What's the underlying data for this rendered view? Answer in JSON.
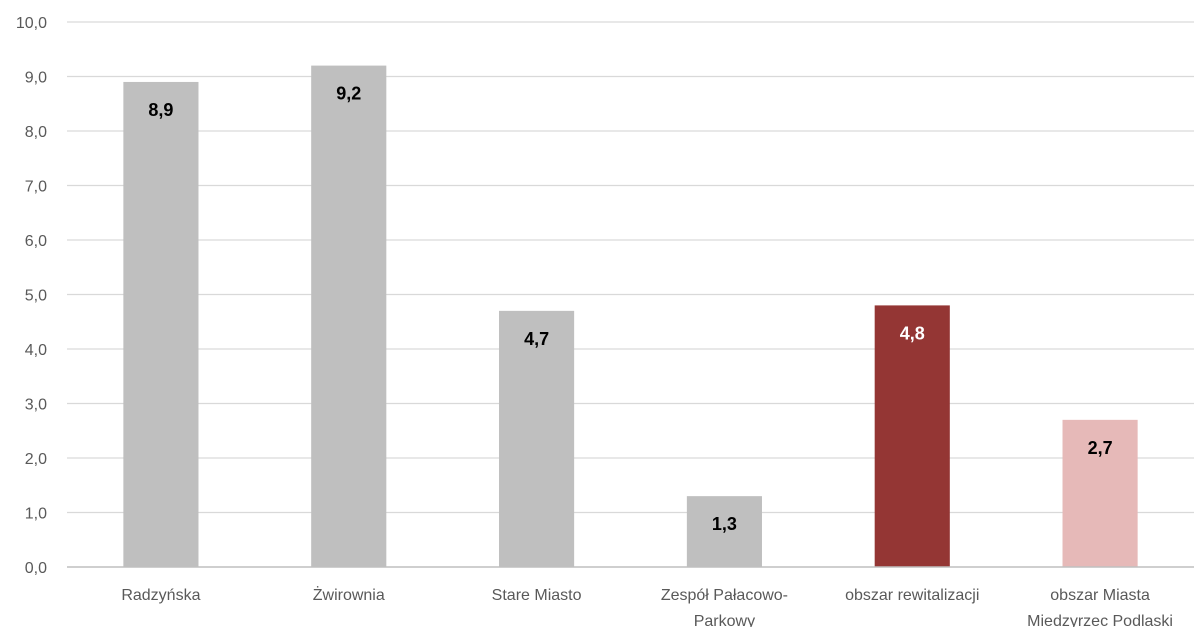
{
  "chart_data": {
    "type": "bar",
    "categories": [
      [
        "Radzyńska"
      ],
      [
        "Żwirownia"
      ],
      [
        "Stare Miasto"
      ],
      [
        "Zespół Pałacowo-",
        "Parkowy"
      ],
      [
        "obszar rewitalizacji"
      ],
      [
        "obszar Miasta",
        "Miedzyrzec Podlaski"
      ]
    ],
    "values": [
      8.9,
      9.2,
      4.7,
      1.3,
      4.8,
      2.7
    ],
    "value_labels": [
      "8,9",
      "9,2",
      "4,7",
      "1,3",
      "4,8",
      "2,7"
    ],
    "bar_colors": [
      "#bfbfbf",
      "#bfbfbf",
      "#bfbfbf",
      "#bfbfbf",
      "#943634",
      "#e6b9b8"
    ],
    "label_colors": [
      "#000000",
      "#000000",
      "#000000",
      "#000000",
      "#ffffff",
      "#000000"
    ],
    "ylim": [
      0,
      10
    ],
    "yticks": [
      0,
      1,
      2,
      3,
      4,
      5,
      6,
      7,
      8,
      9,
      10
    ],
    "ytick_labels": [
      "0,0",
      "1,0",
      "2,0",
      "3,0",
      "4,0",
      "5,0",
      "6,0",
      "7,0",
      "8,0",
      "9,0",
      "10,0"
    ],
    "grid": true,
    "title": "",
    "xlabel": "",
    "ylabel": "",
    "colors": {
      "grid": "#d9d9d9",
      "axis": "#bfbfbf",
      "tick_text": "#595959"
    }
  }
}
